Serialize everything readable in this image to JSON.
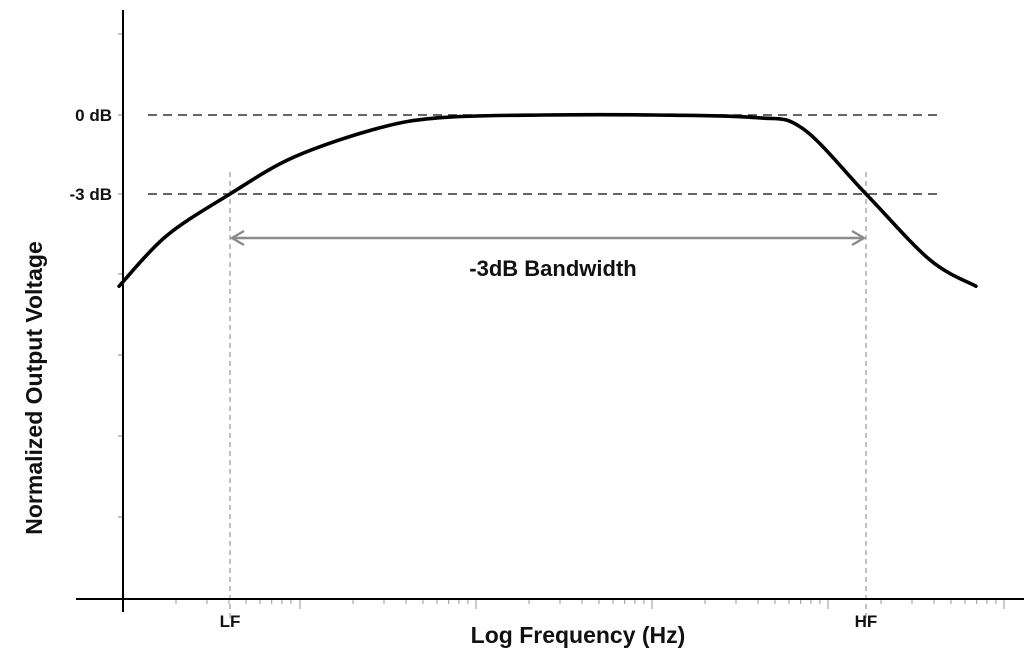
{
  "chart_data": {
    "type": "line",
    "title": "",
    "xlabel": "Log Frequency (Hz)",
    "ylabel": "Normalized Output Voltage",
    "x_scale": "log",
    "ylim": [
      -15,
      0.7
    ],
    "grid": false,
    "legend": "none",
    "colors": {
      "curve": "#000000",
      "reference_lines": "#333333",
      "cutoff_lines": "#9a9a9a",
      "bandwidth_arrow": "#8c8c8c",
      "axes": "#000000"
    },
    "reference_levels": [
      {
        "label": "0 dB",
        "y": 0
      },
      {
        "label": "-3 dB",
        "y": -3
      }
    ],
    "cutoffs": [
      {
        "label": "LF",
        "x": 1
      },
      {
        "label": "HF",
        "x": 1000
      }
    ],
    "span_annotation": {
      "label": "-3dB Bandwidth",
      "from": 1,
      "to": 1000
    },
    "series": [
      {
        "x": [
          0.3,
          0.5,
          1,
          2,
          5,
          10,
          30,
          100,
          300,
          500,
          1000,
          2000,
          3300
        ],
        "y": [
          -6.5,
          -4.6,
          -3,
          -1.6,
          -0.5,
          -0.1,
          0,
          0,
          -0.1,
          -0.5,
          -3,
          -5.5,
          -6.5
        ]
      }
    ]
  }
}
